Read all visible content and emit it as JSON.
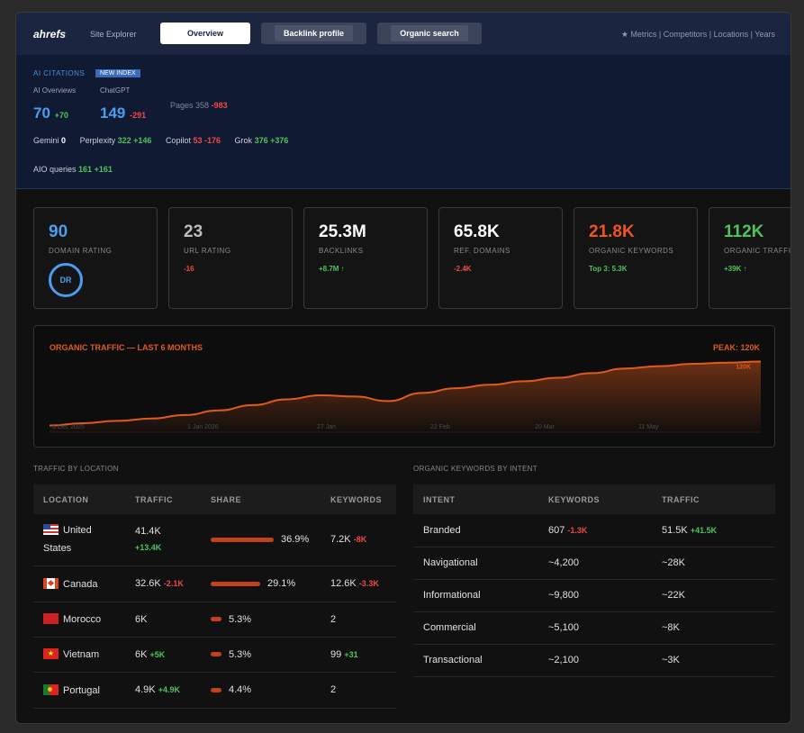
{
  "header": {
    "logo": "ahrefs",
    "nav": "Site Explorer",
    "tabs": [
      "Overview",
      "Backlink profile",
      "Organic search"
    ],
    "links": "★ Metrics | Competitors | Locations | Years"
  },
  "citations": {
    "title": "AI CITATIONS",
    "badge": "NEW INDEX",
    "ai_overviews": {
      "label": "AI Overviews",
      "value": "70",
      "delta": "+70"
    },
    "chatgpt": {
      "label": "ChatGPT",
      "value": "149",
      "delta": "-291"
    },
    "pages": {
      "label": "Pages 358",
      "delta": "-983"
    },
    "sources": [
      {
        "name": "Gemini",
        "value": "0",
        "delta": ""
      },
      {
        "name": "Perplexity",
        "value": "322",
        "delta": "+146"
      },
      {
        "name": "Copilot",
        "value": "53",
        "delta": "-176"
      },
      {
        "name": "Grok",
        "value": "376",
        "delta": "+376"
      }
    ],
    "aio": {
      "label": "AIO queries",
      "value": "161",
      "delta": "+161"
    }
  },
  "cards": [
    {
      "value": "90",
      "label": "DOMAIN RATING",
      "sub": "DR",
      "color": "#4a9ef0"
    },
    {
      "value": "23",
      "label": "URL RATING",
      "sub": "-16",
      "color": "#bdbdbd"
    },
    {
      "value": "25.3M",
      "label": "BACKLINKS",
      "sub": "+8.7M ↑",
      "color": "#ffffff"
    },
    {
      "value": "65.8K",
      "label": "REF. DOMAINS",
      "sub": "-2.4K",
      "color": "#ffffff"
    },
    {
      "value": "21.8K",
      "label": "ORGANIC KEYWORDS",
      "sub": "Top 3: 5.3K",
      "color": "#f0541e"
    },
    {
      "value": "112K",
      "label": "ORGANIC TRAFFIC",
      "sub": "+39K ↑",
      "color": "#4fc35a"
    }
  ],
  "chart_data": {
    "type": "area",
    "title": "ORGANIC TRAFFIC — LAST 6 MONTHS",
    "peak": "PEAK: 120K",
    "peak_label": "120K",
    "x_labels": [
      "6 Dec 2025",
      "1 Jan 2026",
      "27 Jan",
      "22 Feb",
      "20 Mar",
      "11 May"
    ],
    "ylim": [
      0,
      130000
    ],
    "color": "#e05a1e",
    "series": [
      {
        "values": [
          10000,
          14000,
          18000,
          22000,
          28000,
          36000,
          45000,
          55000,
          62000,
          60000,
          52000,
          66000,
          74000,
          80000,
          86000,
          92000,
          100000,
          108000,
          112000,
          116000,
          118000,
          120000
        ]
      }
    ]
  },
  "location": {
    "title": "TRAFFIC BY LOCATION",
    "headers": [
      "LOCATION",
      "TRAFFIC",
      "SHARE",
      "KEYWORDS"
    ],
    "rows": [
      {
        "flag": "us",
        "name": "United States",
        "traffic": "41.4K",
        "tdelta": "+13.4K",
        "share": 36.9,
        "share_text": "36.9%",
        "kw": "7.2K",
        "kwdelta": "-8K"
      },
      {
        "flag": "ca",
        "name": "Canada",
        "traffic": "32.6K",
        "tdelta": "-2.1K",
        "share": 29.1,
        "share_text": "29.1%",
        "kw": "12.6K",
        "kwdelta": "-3.3K"
      },
      {
        "flag": "ma",
        "name": "Morocco",
        "traffic": "6K",
        "tdelta": "",
        "share": 5.3,
        "share_text": "5.3%",
        "kw": "2",
        "kwdelta": ""
      },
      {
        "flag": "vn",
        "name": "Vietnam",
        "traffic": "6K",
        "tdelta": "+5K",
        "share": 5.3,
        "share_text": "5.3%",
        "kw": "99",
        "kwdelta": "+31"
      },
      {
        "flag": "pt",
        "name": "Portugal",
        "traffic": "4.9K",
        "tdelta": "+4.9K",
        "share": 4.4,
        "share_text": "4.4%",
        "kw": "2",
        "kwdelta": ""
      }
    ]
  },
  "intent": {
    "title": "ORGANIC KEYWORDS BY INTENT",
    "headers": [
      "INTENT",
      "KEYWORDS",
      "TRAFFIC"
    ],
    "rows": [
      {
        "intent": "Branded",
        "kw": "607",
        "kwdelta": "-1.3K",
        "traffic": "51.5K",
        "tdelta": "+41.5K"
      },
      {
        "intent": "Navigational",
        "kw": "~4,200",
        "kwdelta": "",
        "traffic": "~28K",
        "tdelta": ""
      },
      {
        "intent": "Informational",
        "kw": "~9,800",
        "kwdelta": "",
        "traffic": "~22K",
        "tdelta": ""
      },
      {
        "intent": "Commercial",
        "kw": "~5,100",
        "kwdelta": "",
        "traffic": "~8K",
        "tdelta": ""
      },
      {
        "intent": "Transactional",
        "kw": "~2,100",
        "kwdelta": "",
        "traffic": "~3K",
        "tdelta": ""
      }
    ]
  }
}
